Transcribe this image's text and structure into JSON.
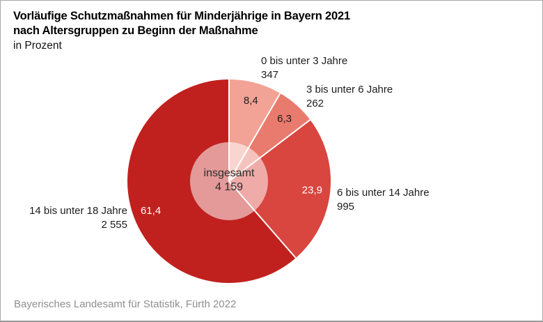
{
  "header": {
    "title_line1": "Vorläufige Schutzmaßnahmen für Minderjährige in Bayern 2021",
    "title_line2": "nach Altersgruppen zu Beginn der Maßnahme",
    "subtitle": "in Prozent"
  },
  "footer": {
    "source": "Bayerisches Landesamt für Statistik, Fürth 2022"
  },
  "chart_data": {
    "type": "pie",
    "title": "Vorläufige Schutzmaßnahmen für Minderjährige in Bayern 2021 nach Altersgruppen zu Beginn der Maßnahme",
    "unit": "in Prozent",
    "direction": "clockwise",
    "start_angle_deg": 0,
    "center_label": "insgesamt",
    "center_value": "4 159",
    "total": 4159,
    "slices": [
      {
        "label": "0 bis unter 3 Jahre",
        "count": "347",
        "value": 347,
        "percent": 8.4,
        "percent_label": "8,4",
        "color": "#F2A396",
        "percent_text_color": "#1c1c1c"
      },
      {
        "label": "3 bis unter 6 Jahre",
        "count": "262",
        "value": 262,
        "percent": 6.3,
        "percent_label": "6,3",
        "color": "#E87B6D",
        "percent_text_color": "#1c1c1c"
      },
      {
        "label": "6 bis unter 14 Jahre",
        "count": "995",
        "value": 995,
        "percent": 23.9,
        "percent_label": "23,9",
        "color": "#D9453F",
        "percent_text_color": "#ffffff"
      },
      {
        "label": "14 bis unter 18 Jahre",
        "count": "2 555",
        "value": 2555,
        "percent": 61.4,
        "percent_label": "61,4",
        "color": "#C1211E",
        "percent_text_color": "#ffffff"
      }
    ],
    "inner_overlay": {
      "color": "#ffffff",
      "opacity": 0.55
    },
    "divider_color": "#ffffff"
  }
}
